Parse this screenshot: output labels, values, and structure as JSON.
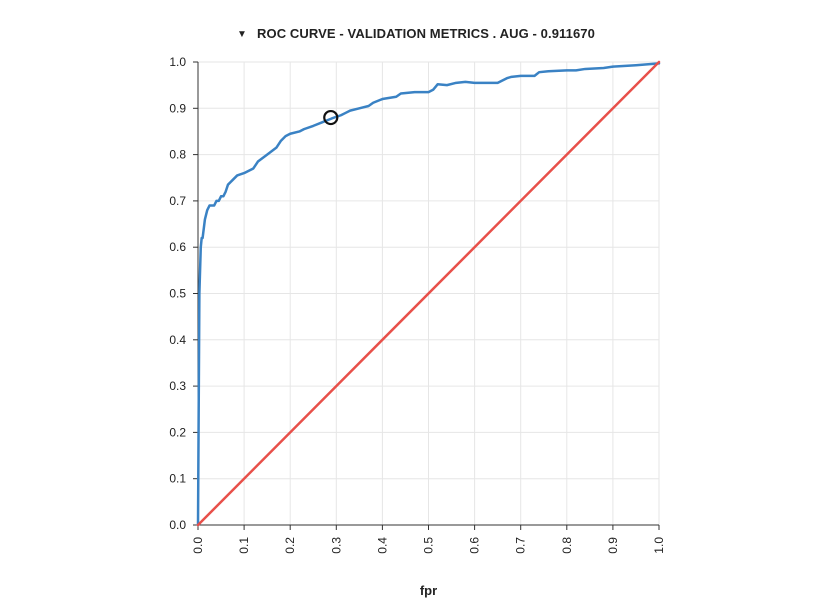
{
  "chart_data": {
    "type": "line",
    "title": "ROC CURVE - VALIDATION METRICS . AUG - 0.911670",
    "title_toggle_icon": "triangle-down-icon",
    "xlabel": "fpr",
    "ylabel": "",
    "xlim": [
      0,
      1
    ],
    "ylim": [
      0,
      1
    ],
    "grid": true,
    "x_ticks": [
      "0.0",
      "0.1",
      "0.2",
      "0.3",
      "0.4",
      "0.5",
      "0.6",
      "0.7",
      "0.8",
      "0.9",
      "1.0"
    ],
    "y_ticks": [
      "0.0",
      "0.1",
      "0.2",
      "0.3",
      "0.4",
      "0.5",
      "0.6",
      "0.7",
      "0.8",
      "0.9",
      "1.0"
    ],
    "series": [
      {
        "color": "#3a82c4",
        "x": [
          0,
          0.003,
          0.006,
          0.008,
          0.01,
          0.015,
          0.02,
          0.025,
          0.03,
          0.035,
          0.04,
          0.045,
          0.05,
          0.055,
          0.06,
          0.065,
          0.07,
          0.075,
          0.085,
          0.1,
          0.12,
          0.13,
          0.15,
          0.17,
          0.18,
          0.19,
          0.2,
          0.22,
          0.23,
          0.25,
          0.27,
          0.29,
          0.31,
          0.32,
          0.33,
          0.35,
          0.37,
          0.38,
          0.4,
          0.43,
          0.44,
          0.47,
          0.5,
          0.51,
          0.52,
          0.54,
          0.56,
          0.58,
          0.6,
          0.62,
          0.64,
          0.65,
          0.67,
          0.68,
          0.7,
          0.73,
          0.74,
          0.76,
          0.8,
          0.82,
          0.84,
          0.88,
          0.9,
          0.95,
          1.0
        ],
        "y": [
          0,
          0.5,
          0.6,
          0.62,
          0.62,
          0.66,
          0.68,
          0.69,
          0.69,
          0.69,
          0.7,
          0.7,
          0.71,
          0.71,
          0.72,
          0.735,
          0.74,
          0.745,
          0.755,
          0.76,
          0.77,
          0.785,
          0.8,
          0.815,
          0.83,
          0.84,
          0.845,
          0.85,
          0.855,
          0.862,
          0.87,
          0.878,
          0.885,
          0.89,
          0.895,
          0.9,
          0.905,
          0.912,
          0.92,
          0.925,
          0.932,
          0.935,
          0.935,
          0.94,
          0.952,
          0.95,
          0.955,
          0.957,
          0.955,
          0.955,
          0.955,
          0.955,
          0.965,
          0.968,
          0.97,
          0.97,
          0.978,
          0.98,
          0.982,
          0.982,
          0.985,
          0.987,
          0.99,
          0.993,
          0.997
        ]
      },
      {
        "color": "#e8504a",
        "x": [
          0,
          1
        ],
        "y": [
          0,
          1
        ]
      }
    ],
    "marker": {
      "x": 0.288,
      "y": 0.88
    }
  }
}
